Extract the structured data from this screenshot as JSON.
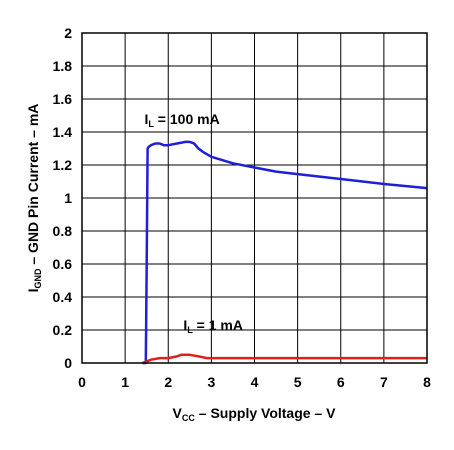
{
  "chart_data": {
    "type": "line",
    "xlabel_main": "V",
    "xlabel_sub": "CC",
    "xlabel_rest": " – Supply Voltage – V",
    "ylabel_main": "I",
    "ylabel_sub": "GND",
    "ylabel_rest": " – GND Pin Current – mA",
    "xlim": [
      0,
      8
    ],
    "ylim": [
      0,
      2
    ],
    "xticks": [
      0,
      1,
      2,
      3,
      4,
      5,
      6,
      7,
      8
    ],
    "yticks": [
      0,
      0.2,
      0.4,
      0.6,
      0.8,
      1,
      1.2,
      1.4,
      1.6,
      1.8,
      2
    ],
    "xtick_labels": [
      "0",
      "1",
      "2",
      "3",
      "4",
      "5",
      "6",
      "7",
      "8"
    ],
    "ytick_labels": [
      "0",
      "0.2",
      "0.4",
      "0.6",
      "0.8",
      "1",
      "1.2",
      "1.4",
      "1.6",
      "1.8",
      "2"
    ],
    "grid": true,
    "series": [
      {
        "name": "I_L = 100 mA",
        "color": "#1f1fd6",
        "x": [
          1.4,
          1.48,
          1.5,
          1.52,
          1.55,
          1.6,
          1.7,
          1.8,
          1.9,
          2.0,
          2.2,
          2.4,
          2.5,
          2.6,
          2.7,
          2.8,
          3.0,
          3.5,
          4.0,
          4.5,
          5.0,
          6.0,
          7.0,
          8.0
        ],
        "y": [
          0.0,
          0.0,
          0.6,
          1.3,
          1.31,
          1.32,
          1.33,
          1.33,
          1.32,
          1.32,
          1.33,
          1.34,
          1.34,
          1.33,
          1.3,
          1.28,
          1.25,
          1.21,
          1.185,
          1.16,
          1.145,
          1.115,
          1.085,
          1.06
        ]
      },
      {
        "name": "I_L = 1 mA",
        "color": "#e01f1f",
        "x": [
          1.4,
          1.5,
          1.6,
          1.8,
          2.0,
          2.2,
          2.3,
          2.5,
          2.7,
          2.9,
          3.0,
          4.0,
          5.0,
          6.0,
          7.0,
          8.0
        ],
        "y": [
          0.0,
          0.01,
          0.02,
          0.03,
          0.03,
          0.04,
          0.05,
          0.05,
          0.04,
          0.03,
          0.03,
          0.03,
          0.03,
          0.03,
          0.03,
          0.03
        ]
      }
    ],
    "annotations": [
      {
        "main": "I",
        "sub": "L",
        "rest": " = 100 mA",
        "x": 1.45,
        "y": 1.45
      },
      {
        "main": "I",
        "sub": "L",
        "rest": " = 1 mA",
        "x": 2.35,
        "y": 0.2
      }
    ]
  }
}
